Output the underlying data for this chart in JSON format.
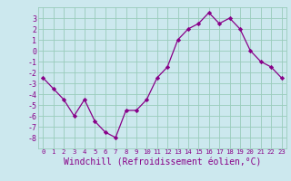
{
  "x": [
    0,
    1,
    2,
    3,
    4,
    5,
    6,
    7,
    8,
    9,
    10,
    11,
    12,
    13,
    14,
    15,
    16,
    17,
    18,
    19,
    20,
    21,
    22,
    23
  ],
  "y": [
    -2.5,
    -3.5,
    -4.5,
    -6.0,
    -4.5,
    -6.5,
    -7.5,
    -8.0,
    -5.5,
    -5.5,
    -4.5,
    -2.5,
    -1.5,
    1.0,
    2.0,
    2.5,
    3.5,
    2.5,
    3.0,
    2.0,
    0.0,
    -1.0,
    -1.5,
    -2.5
  ],
  "line_color": "#880088",
  "marker": "D",
  "marker_size": 2.2,
  "bg_color": "#cce8ee",
  "grid_color": "#99ccbb",
  "xlabel": "Windchill (Refroidissement éolien,°C)",
  "xlabel_fontsize": 7,
  "xlabel_color": "#880088",
  "tick_color": "#880088",
  "ylim": [
    -9,
    4
  ],
  "xlim": [
    -0.5,
    23.5
  ],
  "yticks": [
    -8,
    -7,
    -6,
    -5,
    -4,
    -3,
    -2,
    -1,
    0,
    1,
    2,
    3
  ],
  "xticks": [
    0,
    1,
    2,
    3,
    4,
    5,
    6,
    7,
    8,
    9,
    10,
    11,
    12,
    13,
    14,
    15,
    16,
    17,
    18,
    19,
    20,
    21,
    22,
    23
  ],
  "xtick_labels": [
    "0",
    "1",
    "2",
    "3",
    "4",
    "5",
    "6",
    "7",
    "8",
    "9",
    "10",
    "11",
    "12",
    "13",
    "14",
    "15",
    "16",
    "17",
    "18",
    "19",
    "20",
    "21",
    "22",
    "23"
  ]
}
